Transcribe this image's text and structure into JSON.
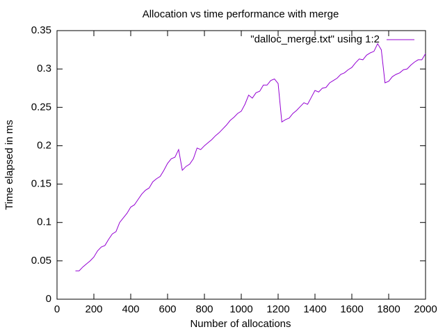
{
  "chart_data": {
    "type": "line",
    "title": "Allocation vs time performance with merge",
    "xlabel": "Number of allocations",
    "ylabel": "Time elapsed in ms",
    "x": [
      100,
      120,
      140,
      160,
      180,
      200,
      220,
      240,
      260,
      280,
      300,
      320,
      340,
      360,
      380,
      400,
      420,
      440,
      460,
      480,
      500,
      520,
      540,
      560,
      580,
      600,
      620,
      640,
      660,
      680,
      700,
      720,
      740,
      760,
      780,
      800,
      820,
      840,
      860,
      880,
      900,
      920,
      940,
      960,
      980,
      1000,
      1020,
      1040,
      1060,
      1080,
      1100,
      1120,
      1140,
      1160,
      1180,
      1200,
      1220,
      1240,
      1260,
      1280,
      1300,
      1320,
      1340,
      1360,
      1380,
      1400,
      1420,
      1440,
      1460,
      1480,
      1500,
      1520,
      1540,
      1560,
      1580,
      1600,
      1620,
      1640,
      1660,
      1680,
      1700,
      1720,
      1740,
      1760,
      1780,
      1800,
      1820,
      1840,
      1860,
      1880,
      1900,
      1920,
      1940,
      1960,
      1980,
      2000
    ],
    "series": [
      {
        "name": "\"dalloc_merge.txt\" using 1:2",
        "color": "#9400d3",
        "values": [
          0.037,
          0.037,
          0.042,
          0.046,
          0.05,
          0.055,
          0.063,
          0.068,
          0.07,
          0.078,
          0.085,
          0.088,
          0.1,
          0.106,
          0.112,
          0.12,
          0.123,
          0.13,
          0.137,
          0.142,
          0.145,
          0.153,
          0.157,
          0.16,
          0.168,
          0.177,
          0.183,
          0.185,
          0.195,
          0.168,
          0.173,
          0.176,
          0.183,
          0.197,
          0.195,
          0.2,
          0.204,
          0.208,
          0.213,
          0.217,
          0.222,
          0.227,
          0.233,
          0.237,
          0.242,
          0.245,
          0.254,
          0.266,
          0.262,
          0.269,
          0.271,
          0.279,
          0.279,
          0.285,
          0.287,
          0.281,
          0.231,
          0.234,
          0.236,
          0.242,
          0.246,
          0.251,
          0.256,
          0.254,
          0.263,
          0.272,
          0.27,
          0.275,
          0.276,
          0.282,
          0.285,
          0.288,
          0.293,
          0.295,
          0.299,
          0.302,
          0.308,
          0.313,
          0.312,
          0.318,
          0.321,
          0.323,
          0.333,
          0.325,
          0.282,
          0.284,
          0.29,
          0.293,
          0.295,
          0.299,
          0.3,
          0.305,
          0.309,
          0.312,
          0.312,
          0.32
        ]
      }
    ],
    "xlim": [
      0,
      2000
    ],
    "xticks": [
      0,
      200,
      400,
      600,
      800,
      1000,
      1200,
      1400,
      1600,
      1800,
      2000
    ],
    "ylim": [
      0,
      0.35
    ],
    "yticks": [
      0,
      0.05,
      0.1,
      0.15,
      0.2,
      0.25,
      0.3,
      0.35
    ],
    "legend": "top-right"
  }
}
